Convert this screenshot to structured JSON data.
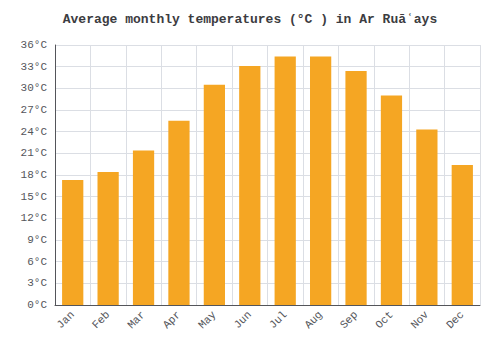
{
  "chart_data": {
    "type": "bar",
    "title": "Average monthly temperatures (°C ) in Ar Ruāʿays",
    "categories": [
      "Jan",
      "Feb",
      "Mar",
      "Apr",
      "May",
      "Jun",
      "Jul",
      "Aug",
      "Sep",
      "Oct",
      "Nov",
      "Dec"
    ],
    "values": [
      17.3,
      18.4,
      21.4,
      25.5,
      30.5,
      33.1,
      34.4,
      34.4,
      32.4,
      29.0,
      24.3,
      19.4
    ],
    "color": "#F5A623",
    "ylim": [
      0,
      36
    ],
    "yticks": [
      {
        "value": 0,
        "label": "0°C"
      },
      {
        "value": 3,
        "label": "3°C"
      },
      {
        "value": 6,
        "label": "6°C"
      },
      {
        "value": 9,
        "label": "9°C"
      },
      {
        "value": 12,
        "label": "12°C"
      },
      {
        "value": 15,
        "label": "15°C"
      },
      {
        "value": 18,
        "label": "18°C"
      },
      {
        "value": 21,
        "label": "21°C"
      },
      {
        "value": 24,
        "label": "24°C"
      },
      {
        "value": 27,
        "label": "27°C"
      },
      {
        "value": 30,
        "label": "30°C"
      },
      {
        "value": 33,
        "label": "33°C"
      },
      {
        "value": 36,
        "label": "36°C"
      }
    ],
    "grid": true
  }
}
